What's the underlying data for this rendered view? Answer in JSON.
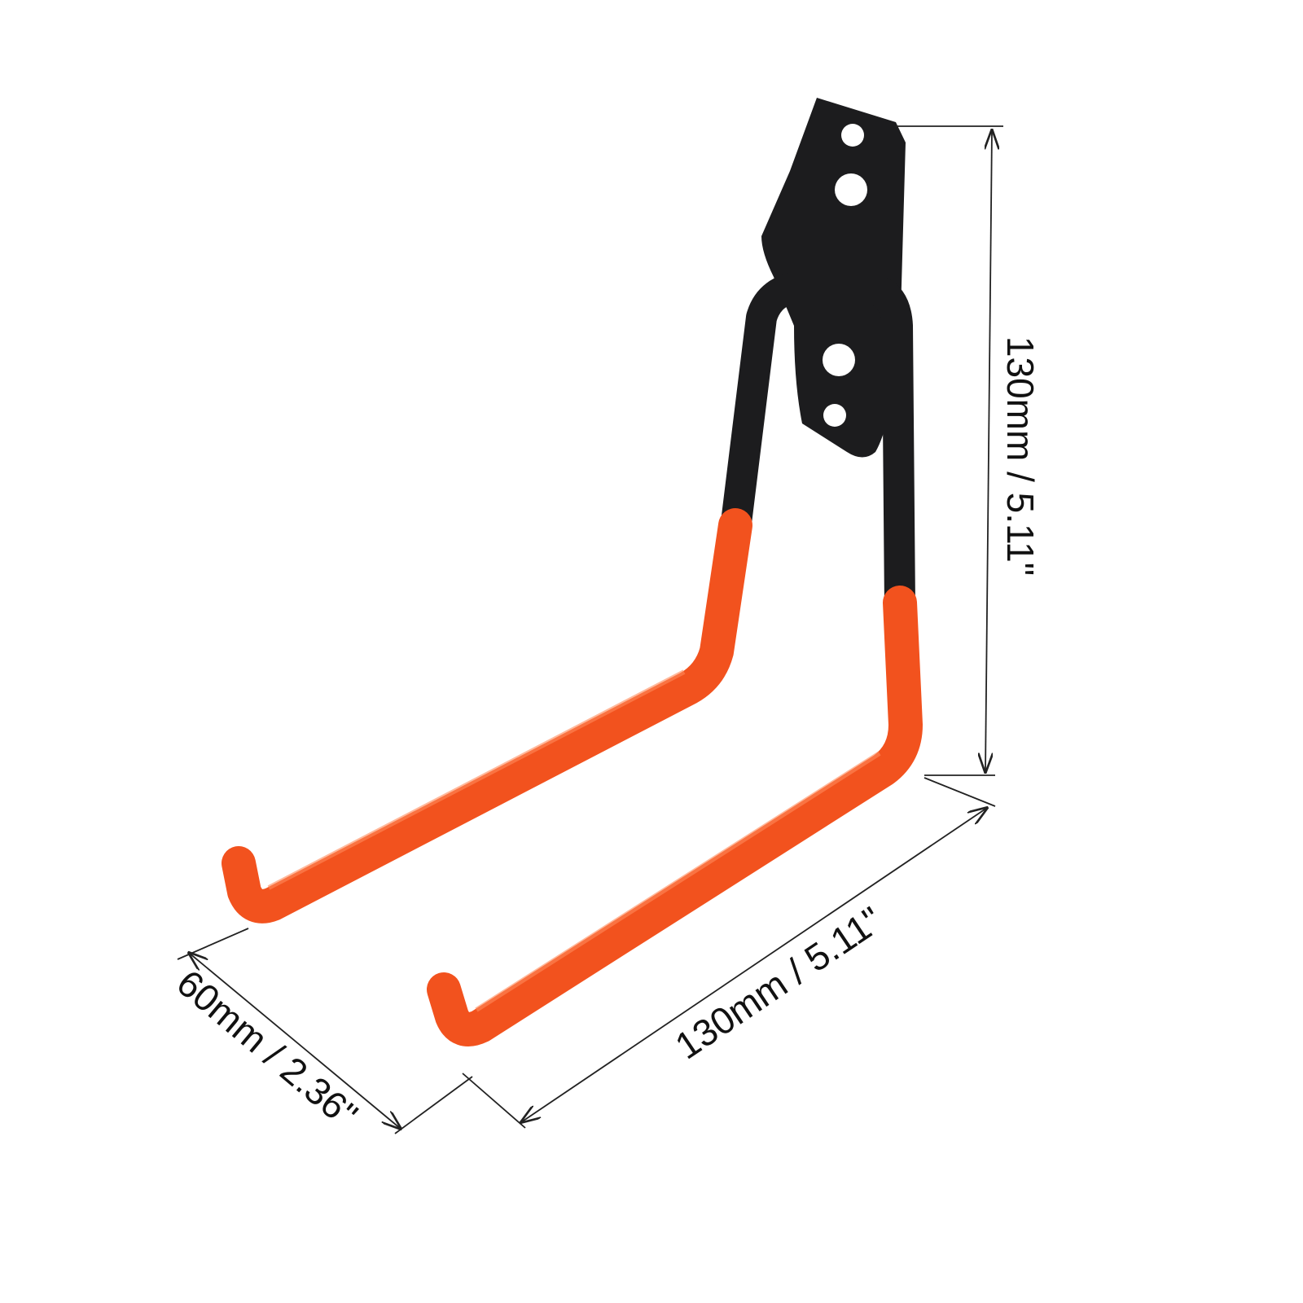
{
  "product": {
    "colors": {
      "coating": "#f2521e",
      "metal": "#1c1c1e",
      "background": "#ffffff"
    }
  },
  "dimensions": {
    "height_label": "130mm / 5.11\"",
    "length_label": "130mm / 5.11\"",
    "width_label": "60mm / 2.36\""
  }
}
